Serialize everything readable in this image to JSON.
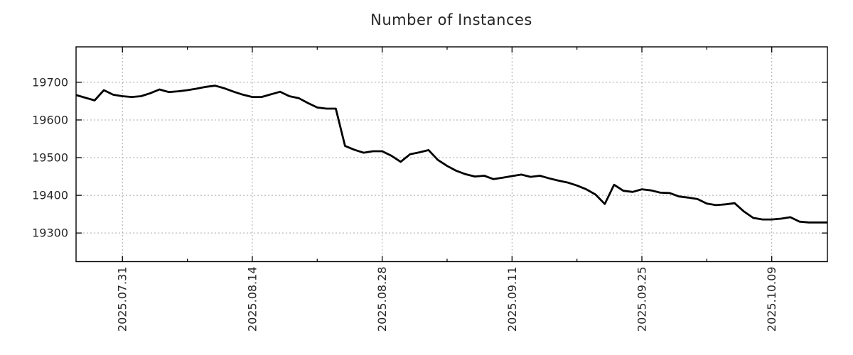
{
  "chart_data": {
    "type": "line",
    "title": "Number of Instances",
    "xlabel": "",
    "ylabel": "",
    "grid": true,
    "legend": false,
    "ylim": [
      19224,
      19794
    ],
    "xlim_days": [
      0,
      81
    ],
    "yticks": [
      19300,
      19400,
      19500,
      19600,
      19700
    ],
    "xticks": [
      {
        "day": 5,
        "label": "2025.07.31"
      },
      {
        "day": 19,
        "label": "2025.08.14"
      },
      {
        "day": 33,
        "label": "2025.08.28"
      },
      {
        "day": 47,
        "label": "2025.09.11"
      },
      {
        "day": 61,
        "label": "2025.09.25"
      },
      {
        "day": 75,
        "label": "2025.10.09"
      }
    ],
    "minor_xtick_days": [
      12,
      26,
      40,
      54,
      68
    ],
    "dates": [
      "2025.07.26",
      "2025.07.27",
      "2025.07.28",
      "2025.07.29",
      "2025.07.30",
      "2025.07.31",
      "2025.08.01",
      "2025.08.02",
      "2025.08.03",
      "2025.08.04",
      "2025.08.05",
      "2025.08.06",
      "2025.08.07",
      "2025.08.08",
      "2025.08.09",
      "2025.08.10",
      "2025.08.11",
      "2025.08.12",
      "2025.08.13",
      "2025.08.14",
      "2025.08.15",
      "2025.08.16",
      "2025.08.17",
      "2025.08.18",
      "2025.08.19",
      "2025.08.20",
      "2025.08.21",
      "2025.08.22",
      "2025.08.23",
      "2025.08.24",
      "2025.08.25",
      "2025.08.26",
      "2025.08.27",
      "2025.08.28",
      "2025.08.29",
      "2025.08.30",
      "2025.08.31",
      "2025.09.01",
      "2025.09.02",
      "2025.09.03",
      "2025.09.04",
      "2025.09.05",
      "2025.09.06",
      "2025.09.07",
      "2025.09.08",
      "2025.09.09",
      "2025.09.10",
      "2025.09.11",
      "2025.09.12",
      "2025.09.13",
      "2025.09.14",
      "2025.09.15",
      "2025.09.16",
      "2025.09.17",
      "2025.09.18",
      "2025.09.19",
      "2025.09.20",
      "2025.09.21",
      "2025.09.22",
      "2025.09.23",
      "2025.09.24",
      "2025.09.25",
      "2025.09.26",
      "2025.09.27",
      "2025.09.28",
      "2025.09.29",
      "2025.09.30",
      "2025.10.01",
      "2025.10.02",
      "2025.10.03",
      "2025.10.04",
      "2025.10.05",
      "2025.10.06",
      "2025.10.07",
      "2025.10.08",
      "2025.10.09",
      "2025.10.10",
      "2025.10.11",
      "2025.10.12",
      "2025.10.13",
      "2025.10.14",
      "2025.10.15"
    ],
    "values": [
      19666,
      19659,
      19652,
      19679,
      19667,
      19663,
      19661,
      19663,
      19671,
      19681,
      19674,
      19676,
      19679,
      19683,
      19688,
      19691,
      19684,
      19675,
      19667,
      19661,
      19661,
      19668,
      19675,
      19663,
      19658,
      19645,
      19633,
      19630,
      19630,
      19531,
      19521,
      19513,
      19517,
      19517,
      19505,
      19489,
      19509,
      19514,
      19520,
      19494,
      19478,
      19465,
      19456,
      19450,
      19452,
      19443,
      19447,
      19451,
      19455,
      19449,
      19452,
      19445,
      19439,
      19434,
      19426,
      19416,
      19402,
      19377,
      19428,
      19412,
      19409,
      19416,
      19413,
      19407,
      19406,
      19397,
      19394,
      19390,
      19378,
      19374,
      19376,
      19379,
      19357,
      19340,
      19336,
      19336,
      19338,
      19342,
      19330,
      19328,
      19328,
      19328
    ]
  },
  "colors": {
    "line": "#000000",
    "grid": "#a9a9a9",
    "axis": "#000000",
    "text": "#262626",
    "background": "#ffffff"
  }
}
